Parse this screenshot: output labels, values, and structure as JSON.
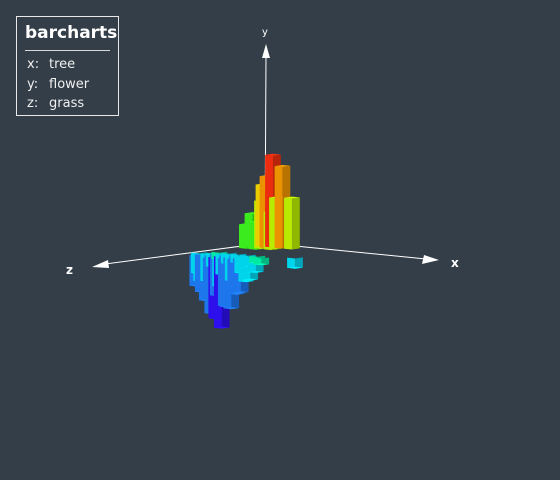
{
  "legend": {
    "title": "barcharts",
    "x_key": "x:",
    "x_name": "tree",
    "y_key": "y:",
    "y_name": "flower",
    "z_key": "z:",
    "z_name": "grass"
  },
  "axes": {
    "x_label": "x",
    "y_label": "y",
    "z_label": "z"
  },
  "colors": {
    "background": "#333e48",
    "axis": "#ffffff",
    "visual_map": [
      "#3010ff",
      "#2080ff",
      "#00e6ff",
      "#00ffb0",
      "#40ff20",
      "#c8ff00",
      "#ffe000",
      "#ff9f00",
      "#ff3010"
    ]
  },
  "chart_data": {
    "type": "bar3D",
    "title": "barcharts",
    "xlabel": "tree",
    "ylabel": "flower",
    "zlabel": "grass",
    "series": [
      {
        "points": [
          {
            "x": 1,
            "y": 3.6,
            "z": 1.2,
            "v": 6.0
          },
          {
            "x": 2,
            "y": 5.4,
            "z": 1.2,
            "v": 8.0
          },
          {
            "x": 3,
            "y": 4.8,
            "z": 1.2,
            "v": 7.0
          },
          {
            "x": 4,
            "y": 3.0,
            "z": 1.2,
            "v": 5.0
          },
          {
            "x": 2,
            "y": 4.2,
            "z": 1.8,
            "v": 6.5
          },
          {
            "x": 3,
            "y": 3.0,
            "z": 1.8,
            "v": 5.0
          },
          {
            "x": 1,
            "y": 2.0,
            "z": 2.4,
            "v": 4.0
          },
          {
            "x": 2,
            "y": 2.8,
            "z": 2.4,
            "v": 5.0
          },
          {
            "x": 3,
            "y": 2.2,
            "z": 2.4,
            "v": 4.5
          },
          {
            "x": 1,
            "y": 1.4,
            "z": 3.0,
            "v": 3.5
          },
          {
            "x": 2,
            "y": 1.6,
            "z": 3.0,
            "v": 3.8
          },
          {
            "x": 1,
            "y": -0.4,
            "z": 6.0,
            "v": 2.5
          },
          {
            "x": 2,
            "y": -0.6,
            "z": 6.0,
            "v": 2.2
          },
          {
            "x": 3,
            "y": -0.5,
            "z": 6.0,
            "v": 2.4
          },
          {
            "x": 4,
            "y": -0.8,
            "z": 6.0,
            "v": 2.0
          },
          {
            "x": 5,
            "y": -0.4,
            "z": 6.0,
            "v": 2.6
          },
          {
            "x": 1,
            "y": -0.8,
            "z": 6.6,
            "v": 2.2
          },
          {
            "x": 2,
            "y": -1.2,
            "z": 6.6,
            "v": 1.8
          },
          {
            "x": 3,
            "y": -1.5,
            "z": 6.6,
            "v": 1.5
          },
          {
            "x": 4,
            "y": -1.0,
            "z": 6.6,
            "v": 1.9
          },
          {
            "x": 5,
            "y": -0.6,
            "z": 6.6,
            "v": 2.3
          },
          {
            "x": 6,
            "y": -0.4,
            "z": 6.6,
            "v": 2.5
          },
          {
            "x": 0,
            "y": -1.2,
            "z": 7.2,
            "v": 2.0
          },
          {
            "x": 1,
            "y": -1.6,
            "z": 7.2,
            "v": 1.5
          },
          {
            "x": 2,
            "y": -2.4,
            "z": 7.2,
            "v": 1.0
          },
          {
            "x": 3,
            "y": -3.0,
            "z": 7.2,
            "v": 0.5
          },
          {
            "x": 4,
            "y": -2.2,
            "z": 7.2,
            "v": 1.0
          },
          {
            "x": 5,
            "y": -1.4,
            "z": 7.2,
            "v": 1.7
          },
          {
            "x": 6,
            "y": -0.8,
            "z": 7.2,
            "v": 2.2
          },
          {
            "x": 1,
            "y": -2.2,
            "z": 7.8,
            "v": 1.2
          },
          {
            "x": 2,
            "y": -3.4,
            "z": 7.8,
            "v": 0.6
          },
          {
            "x": 3,
            "y": -4.2,
            "z": 7.8,
            "v": 0.0
          },
          {
            "x": 4,
            "y": -3.0,
            "z": 7.8,
            "v": 0.6
          },
          {
            "x": 5,
            "y": -2.0,
            "z": 7.8,
            "v": 1.2
          },
          {
            "x": 6,
            "y": -1.2,
            "z": 7.8,
            "v": 1.8
          },
          {
            "x": 1,
            "y": -1.8,
            "z": 8.4,
            "v": 1.4
          },
          {
            "x": 2,
            "y": -2.6,
            "z": 8.4,
            "v": 0.8
          },
          {
            "x": 3,
            "y": -3.6,
            "z": 8.4,
            "v": 0.2
          },
          {
            "x": 4,
            "y": -2.8,
            "z": 8.4,
            "v": 0.8
          },
          {
            "x": 5,
            "y": -1.8,
            "z": 8.4,
            "v": 1.4
          },
          {
            "x": 2,
            "y": -1.4,
            "z": 9.0,
            "v": 1.6
          },
          {
            "x": 3,
            "y": -2.0,
            "z": 9.0,
            "v": 1.2
          },
          {
            "x": 4,
            "y": -1.6,
            "z": 9.0,
            "v": 1.5
          },
          {
            "x": 8,
            "y": -0.6,
            "z": 5.0,
            "v": 2.4
          }
        ]
      }
    ]
  }
}
